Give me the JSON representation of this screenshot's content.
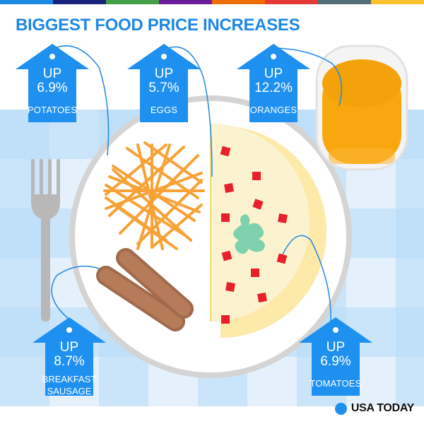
{
  "title": "BIGGEST FOOD PRICE INCREASES",
  "tags": [
    {
      "up": "UP",
      "percent": "6.9%",
      "item": "POTATOES"
    },
    {
      "up": "UP",
      "percent": "5.7%",
      "item": "EGGS"
    },
    {
      "up": "UP",
      "percent": "12.2%",
      "item": "ORANGES"
    },
    {
      "up": "UP",
      "percent": "8.7%",
      "item": "BREAKFAST SAUSAGE"
    },
    {
      "up": "UP",
      "percent": "6.9%",
      "item": "TOMATOES"
    }
  ],
  "brand": "USA TODAY",
  "colors": {
    "accent": "#1e90f0",
    "stripes": [
      "#1e88e5",
      "#1a237e",
      "#43a047",
      "#6a1b9a",
      "#ef6c00",
      "#e53935",
      "#546e7a",
      "#fbc02d"
    ]
  }
}
